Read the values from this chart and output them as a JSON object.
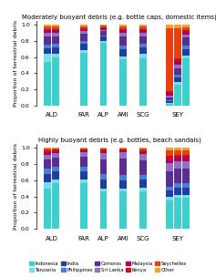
{
  "title1": "Moderately buoyant debris (e.g. bottle caps, domestic items)",
  "title2": "Highly buoyant debris (e.g. bottles, beach sandals)",
  "ylabel": "Proportion of terrestrial debris",
  "groups": [
    "ALD",
    "FAR",
    "ALP",
    "AMI",
    "SCG",
    "SEY"
  ],
  "bar_counts": [
    2,
    1,
    1,
    1,
    1,
    3
  ],
  "colors": {
    "Indonesia": "#3ecfcf",
    "Tanzania": "#7adde8",
    "India": "#1e3fa0",
    "Philippines": "#4a7fd4",
    "Comoros": "#5c2d91",
    "Sri Lanka": "#9370c8",
    "Malaysia": "#b0005a",
    "Kenya": "#cc1111",
    "Seychelles": "#e84010",
    "Other": "#f5a030"
  },
  "categories": [
    "Indonesia",
    "Tanzania",
    "India",
    "Philippines",
    "Comoros",
    "Sri Lanka",
    "Malaysia",
    "Kenya",
    "Seychelles",
    "Other"
  ],
  "mod_data": {
    "ALD_1": [
      0.54,
      0.1,
      0.07,
      0.04,
      0.11,
      0.04,
      0.03,
      0.02,
      0.03,
      0.02
    ],
    "ALD_2": [
      0.6,
      0.04,
      0.08,
      0.04,
      0.1,
      0.04,
      0.03,
      0.02,
      0.03,
      0.02
    ],
    "FAR_1": [
      0.65,
      0.04,
      0.08,
      0.03,
      0.09,
      0.03,
      0.02,
      0.02,
      0.02,
      0.02
    ],
    "ALP_1": [
      0.78,
      0.02,
      0.05,
      0.02,
      0.05,
      0.02,
      0.02,
      0.01,
      0.02,
      0.01
    ],
    "AMI_1": [
      0.57,
      0.04,
      0.09,
      0.04,
      0.12,
      0.04,
      0.03,
      0.02,
      0.03,
      0.02
    ],
    "SCG_1": [
      0.58,
      0.06,
      0.08,
      0.04,
      0.1,
      0.04,
      0.03,
      0.02,
      0.03,
      0.02
    ],
    "SEY_1": [
      0.02,
      0.01,
      0.02,
      0.01,
      0.04,
      0.02,
      0.03,
      0.03,
      0.78,
      0.04
    ],
    "SEY_2": [
      0.26,
      0.03,
      0.06,
      0.03,
      0.08,
      0.04,
      0.05,
      0.04,
      0.37,
      0.04
    ],
    "SEY_3": [
      0.58,
      0.04,
      0.08,
      0.04,
      0.1,
      0.04,
      0.03,
      0.02,
      0.04,
      0.03
    ]
  },
  "high_data": {
    "ALD_1": [
      0.5,
      0.08,
      0.1,
      0.06,
      0.12,
      0.06,
      0.03,
      0.02,
      0.02,
      0.01
    ],
    "ALD_2": [
      0.56,
      0.05,
      0.1,
      0.06,
      0.11,
      0.06,
      0.02,
      0.02,
      0.01,
      0.01
    ],
    "FAR_1": [
      0.57,
      0.04,
      0.1,
      0.06,
      0.12,
      0.06,
      0.02,
      0.01,
      0.01,
      0.01
    ],
    "ALP_1": [
      0.46,
      0.04,
      0.11,
      0.07,
      0.18,
      0.08,
      0.02,
      0.02,
      0.01,
      0.01
    ],
    "AMI_1": [
      0.46,
      0.04,
      0.1,
      0.07,
      0.2,
      0.08,
      0.02,
      0.01,
      0.01,
      0.01
    ],
    "SCG_1": [
      0.46,
      0.05,
      0.1,
      0.06,
      0.18,
      0.08,
      0.02,
      0.02,
      0.02,
      0.01
    ],
    "SEY_1": [
      0.35,
      0.04,
      0.08,
      0.05,
      0.19,
      0.1,
      0.05,
      0.04,
      0.07,
      0.03
    ],
    "SEY_2": [
      0.38,
      0.04,
      0.09,
      0.05,
      0.18,
      0.1,
      0.05,
      0.03,
      0.05,
      0.03
    ],
    "SEY_3": [
      0.38,
      0.04,
      0.09,
      0.05,
      0.18,
      0.1,
      0.05,
      0.03,
      0.05,
      0.03
    ]
  }
}
